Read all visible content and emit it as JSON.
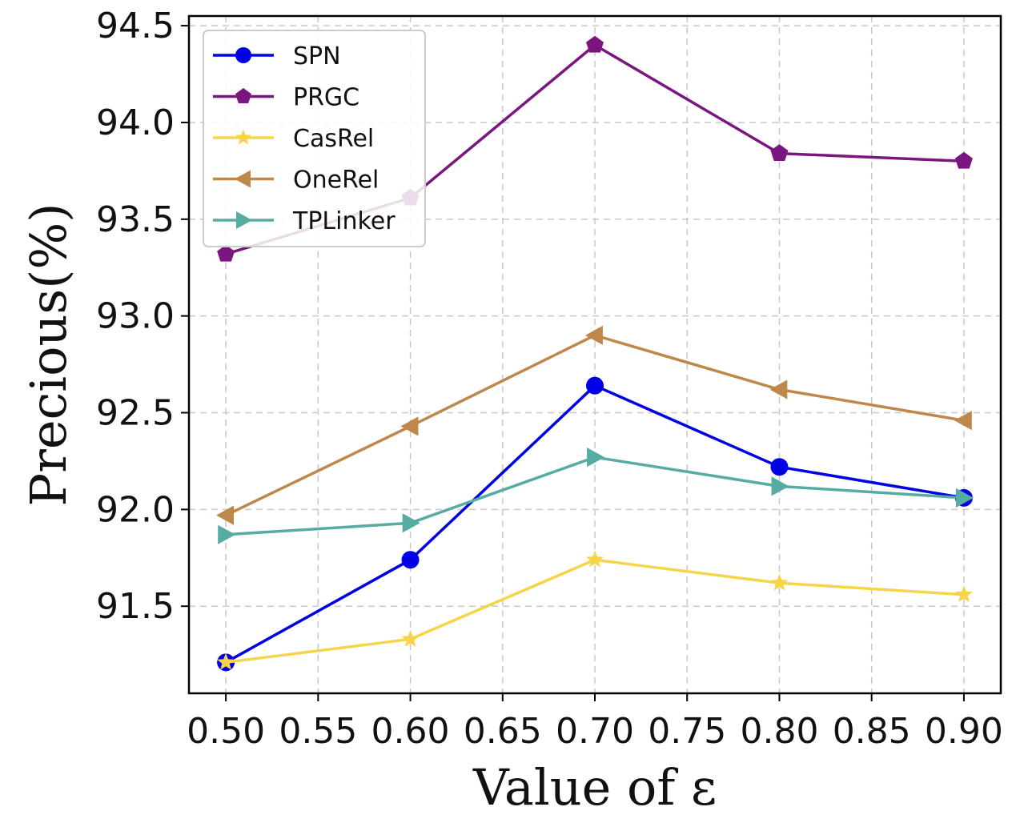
{
  "chart_data": {
    "type": "line",
    "title": "",
    "xlabel": "Value of ε",
    "ylabel": "Precious(%)",
    "xlim": [
      0.48,
      0.92
    ],
    "ylim": [
      91.05,
      94.55
    ],
    "x_ticks": [
      0.5,
      0.55,
      0.6,
      0.65,
      0.7,
      0.75,
      0.8,
      0.85,
      0.9
    ],
    "x_tick_labels": [
      "0.50",
      "0.55",
      "0.60",
      "0.65",
      "0.70",
      "0.75",
      "0.80",
      "0.85",
      "0.90"
    ],
    "y_ticks": [
      91.5,
      92.0,
      92.5,
      93.0,
      93.5,
      94.0,
      94.5
    ],
    "y_tick_labels": [
      "91.5",
      "92.0",
      "92.5",
      "93.0",
      "93.5",
      "94.0",
      "94.5"
    ],
    "grid": true,
    "grid_style": "dashed",
    "legend_position": "top-left",
    "x": [
      0.5,
      0.6,
      0.7,
      0.8,
      0.9
    ],
    "series": [
      {
        "name": "SPN",
        "color": "#0000e6",
        "marker": "circle",
        "values": [
          91.21,
          91.74,
          92.64,
          92.22,
          92.06
        ]
      },
      {
        "name": "PRGC",
        "color": "#7b1680",
        "marker": "pentagon",
        "values": [
          93.32,
          93.61,
          94.4,
          93.84,
          93.8
        ]
      },
      {
        "name": "CasRel",
        "color": "#f5d547",
        "marker": "star",
        "values": [
          91.21,
          91.33,
          91.74,
          91.62,
          91.56
        ]
      },
      {
        "name": "OneRel",
        "color": "#c0874a",
        "marker": "triangle-left",
        "values": [
          91.97,
          92.43,
          92.9,
          92.62,
          92.46
        ]
      },
      {
        "name": "TPLinker",
        "color": "#56aba3",
        "marker": "triangle-right",
        "values": [
          91.87,
          91.93,
          92.27,
          92.12,
          92.06
        ]
      }
    ]
  }
}
